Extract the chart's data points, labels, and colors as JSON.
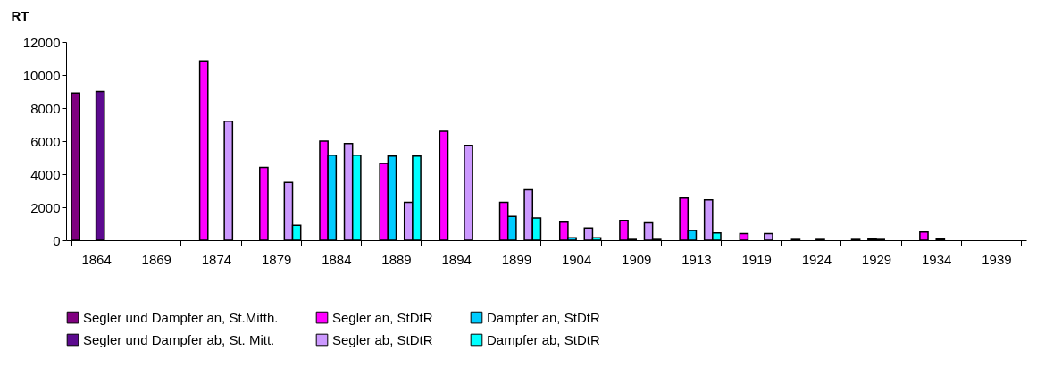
{
  "chart_data": {
    "type": "bar",
    "ylabel": "RT",
    "categories": [
      "1864",
      "1869",
      "1874",
      "1879",
      "1884",
      "1889",
      "1894",
      "1899",
      "1904",
      "1909",
      "1913",
      "1919",
      "1924",
      "1929",
      "1934",
      "1939"
    ],
    "series": [
      {
        "name": "Segler und Dampfer an, St.Mitth.",
        "color": "#800080",
        "values": [
          8900,
          null,
          null,
          null,
          null,
          null,
          null,
          null,
          null,
          null,
          null,
          null,
          50,
          50,
          null,
          null
        ]
      },
      {
        "name": "Segler an, StDtR",
        "color": "#ff00ff",
        "values": [
          null,
          null,
          10850,
          4400,
          6000,
          4650,
          6600,
          2300,
          1100,
          1200,
          2550,
          400,
          null,
          null,
          500,
          null
        ]
      },
      {
        "name": "Dampfer an, StDtR",
        "color": "#00ccff",
        "values": [
          null,
          null,
          null,
          null,
          5150,
          5100,
          null,
          1450,
          150,
          50,
          600,
          null,
          null,
          80,
          null,
          null
        ]
      },
      {
        "name": "Segler und Dampfer ab, St. Mitt.",
        "color": "#5c0a8f",
        "values": [
          9000,
          null,
          null,
          null,
          null,
          null,
          null,
          null,
          null,
          null,
          null,
          null,
          50,
          50,
          80,
          null
        ]
      },
      {
        "name": "Segler ab, StDtR",
        "color": "#cc99ff",
        "values": [
          null,
          null,
          7200,
          3500,
          5850,
          2300,
          5750,
          3050,
          750,
          1050,
          2450,
          400,
          null,
          null,
          null,
          null
        ]
      },
      {
        "name": "Dampfer ab, StDtR",
        "color": "#00ffff",
        "values": [
          null,
          null,
          null,
          900,
          5150,
          5100,
          null,
          1350,
          150,
          50,
          450,
          null,
          null,
          null,
          null,
          null
        ]
      }
    ],
    "ylim": [
      0,
      12000
    ],
    "yticks": [
      0,
      2000,
      4000,
      6000,
      8000,
      10000,
      12000
    ],
    "legend": "bottom"
  }
}
